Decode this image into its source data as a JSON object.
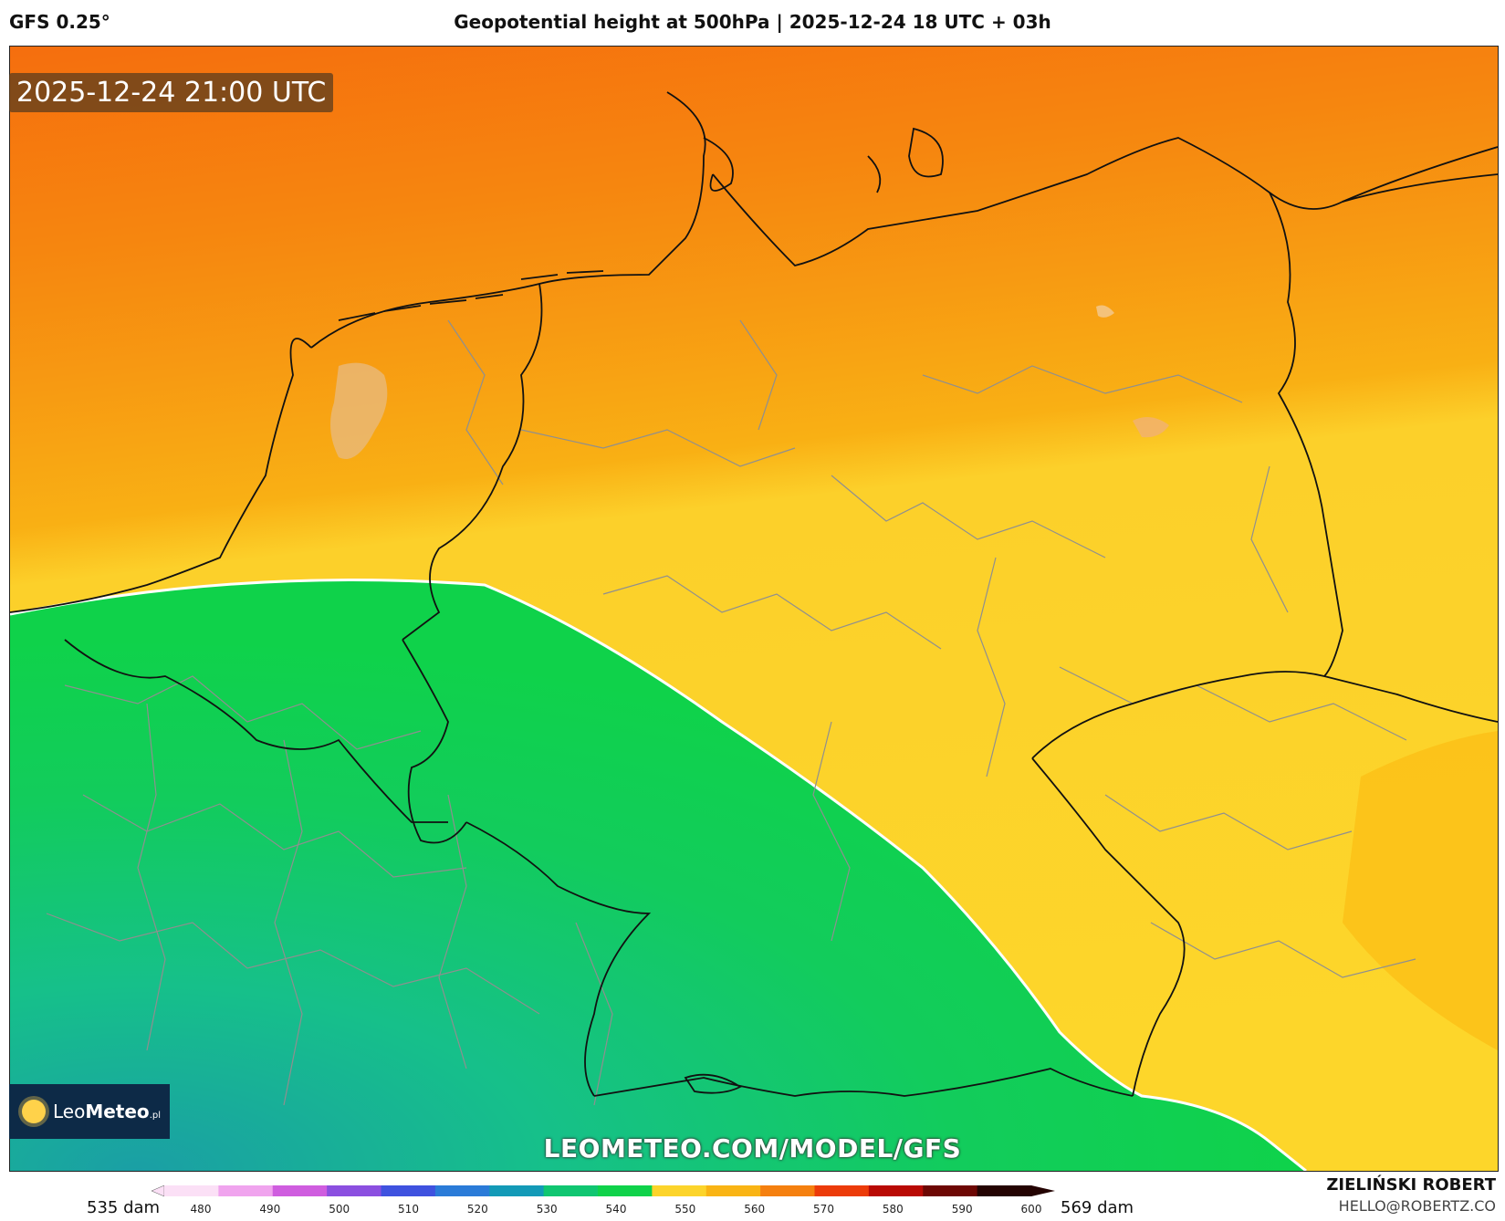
{
  "header": {
    "model": "GFS 0.25°",
    "title": "Geopotential height at 500hPa | 2025-12-24 18 UTC + 03h"
  },
  "map": {
    "valid_time": "2025-12-24 21:00 UTC",
    "watermark": "LEOMETEO.COM/MODEL/GFS",
    "colors": {
      "deep_orange": "#f57a10",
      "orange": "#f7a514",
      "amber": "#fbbf16",
      "yellow": "#fdd62a",
      "green": "#0fd24a",
      "teal": "#17b995",
      "boundary": "#111111",
      "region_border": "#9a9a9a"
    }
  },
  "logo": {
    "name_light": "Leo",
    "name_bold": "Meteo",
    "suffix": ".pl"
  },
  "scale": {
    "min_label": "535 dam",
    "max_label": "569 dam",
    "ticks": [
      "480",
      "490",
      "500",
      "510",
      "520",
      "530",
      "540",
      "550",
      "560",
      "570",
      "580",
      "590",
      "600"
    ],
    "stops": [
      "#fbe0f6",
      "#f0a4ee",
      "#cf5ddf",
      "#8b4fe0",
      "#3f52df",
      "#2a7bd8",
      "#139ab7",
      "#10c671",
      "#0fd24a",
      "#fcd42b",
      "#f9b414",
      "#f5800f",
      "#ec3b09",
      "#b90a04",
      "#6d0703",
      "#240302"
    ]
  },
  "credits": {
    "author": "ZIELIŃSKI ROBERT",
    "email": "HELLO@ROBERTZ.CO"
  }
}
